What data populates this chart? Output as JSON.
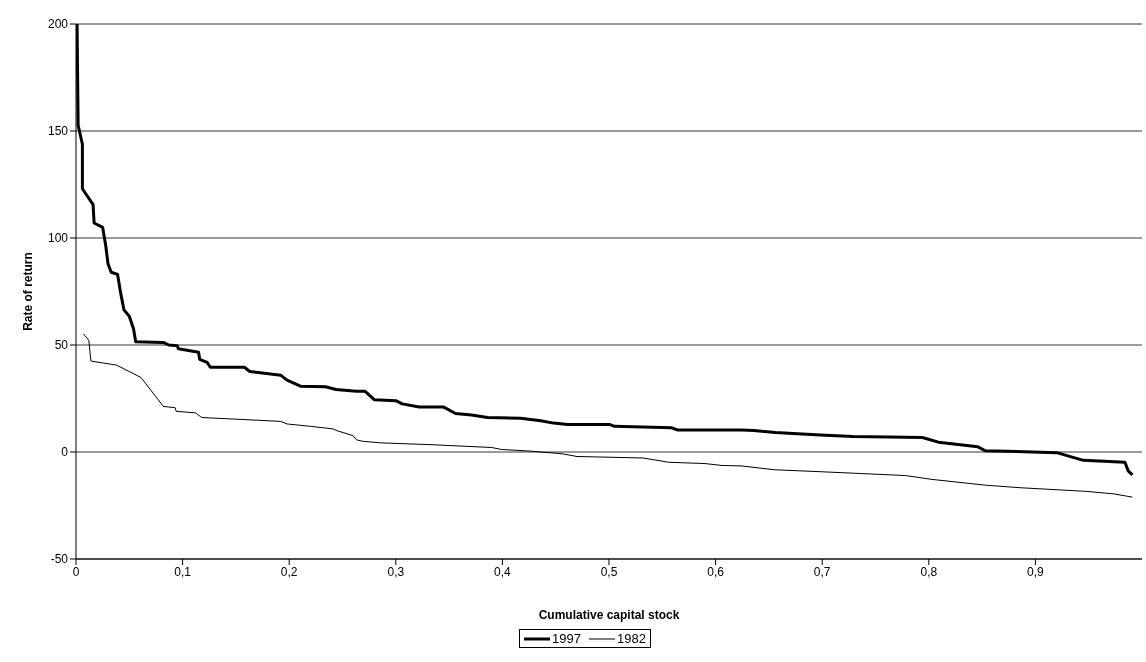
{
  "chart_data": {
    "type": "line",
    "xlabel": "Cumulative capital stock",
    "ylabel": "Rate of return",
    "xlim": [
      0,
      1
    ],
    "xticks": [
      0,
      {
        "value": 0.1,
        "label": "0,1"
      },
      {
        "value": 0.2,
        "label": "0,2"
      },
      {
        "value": 0.3,
        "label": "0,3"
      },
      {
        "value": 0.4,
        "label": "0,4"
      },
      {
        "value": 0.5,
        "label": "0,5"
      },
      {
        "value": 0.6,
        "label": "0,6"
      },
      {
        "value": 0.7,
        "label": "0,7"
      },
      {
        "value": 0.8,
        "label": "0,8"
      },
      {
        "value": 0.9,
        "label": "0,9"
      }
    ],
    "ylim": [
      -50,
      200
    ],
    "yticks": [
      -50,
      0,
      50,
      100,
      150,
      200
    ],
    "grid": "y",
    "legend": "bottom",
    "marker": "none",
    "line_style": "solid",
    "series": [
      {
        "name": "1997",
        "color": "#000000",
        "x": [
          0.001,
          0.002,
          0.006,
          0.006,
          0.016,
          0.017,
          0.025,
          0.028,
          0.03,
          0.033,
          0.039,
          0.042,
          0.045,
          0.05,
          0.054,
          0.056,
          0.082,
          0.087,
          0.095,
          0.096,
          0.115,
          0.116,
          0.123,
          0.126,
          0.158,
          0.163,
          0.192,
          0.198,
          0.211,
          0.234,
          0.244,
          0.263,
          0.271,
          0.28,
          0.3,
          0.306,
          0.322,
          0.345,
          0.356,
          0.371,
          0.386,
          0.417,
          0.436,
          0.448,
          0.461,
          0.501,
          0.505,
          0.559,
          0.564,
          0.624,
          0.636,
          0.656,
          0.698,
          0.729,
          0.794,
          0.809,
          0.846,
          0.853,
          0.92,
          0.945,
          0.984,
          0.987,
          0.991
        ],
        "values": [
          200,
          152.7,
          143.8,
          123,
          115.6,
          107,
          105,
          96,
          88,
          84,
          83,
          74,
          66.4,
          63.4,
          57.5,
          51.5,
          51.2,
          50,
          49.7,
          48.2,
          46.6,
          43.3,
          41.9,
          39.6,
          39.6,
          37.6,
          35.9,
          33.6,
          30.7,
          30.5,
          29.2,
          28.4,
          28.4,
          24.4,
          24,
          22.5,
          21,
          21,
          18,
          17.3,
          16.1,
          15.8,
          14.6,
          13.5,
          12.8,
          12.8,
          12,
          11.3,
          10.3,
          10.3,
          10.1,
          9.1,
          8,
          7.3,
          6.8,
          4.6,
          2.4,
          0.6,
          -0.3,
          -3.9,
          -4.8,
          -8.8,
          -10.7
        ]
      },
      {
        "name": "1982",
        "color": "#000000",
        "x": [
          0.007,
          0.012,
          0.014,
          0.038,
          0.061,
          0.082,
          0.093,
          0.094,
          0.112,
          0.118,
          0.152,
          0.192,
          0.198,
          0.22,
          0.241,
          0.244,
          0.26,
          0.263,
          0.269,
          0.285,
          0.334,
          0.39,
          0.399,
          0.427,
          0.457,
          0.47,
          0.532,
          0.556,
          0.59,
          0.606,
          0.624,
          0.655,
          0.698,
          0.778,
          0.803,
          0.853,
          0.886,
          0.948,
          0.974,
          0.991
        ],
        "values": [
          55.2,
          52.2,
          42.5,
          40.6,
          34.8,
          21.3,
          20.7,
          19,
          18.3,
          16.1,
          15.3,
          14.3,
          13.1,
          12,
          10.8,
          10.1,
          7.6,
          5.7,
          5,
          4.3,
          3.4,
          2.1,
          1.2,
          0.4,
          -0.9,
          -2.1,
          -2.8,
          -4.8,
          -5.4,
          -6.3,
          -6.5,
          -8.3,
          -9.2,
          -11,
          -12.8,
          -15.5,
          -16.7,
          -18.4,
          -19.6,
          -21.1
        ]
      }
    ]
  }
}
